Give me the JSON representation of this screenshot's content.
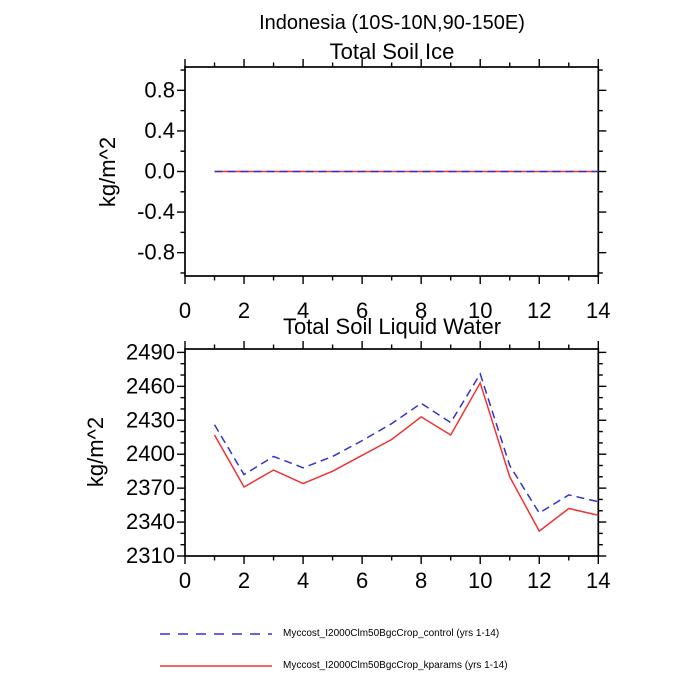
{
  "page": {
    "main_title": "Indonesia (10S-10N,90-150E)",
    "background": "#ffffff",
    "text_color": "#000000"
  },
  "chart_data": [
    {
      "type": "line",
      "title": "Total Soil Ice",
      "ylabel": "kg/m^2",
      "xlim": [
        0,
        14
      ],
      "ylim": [
        -1.03,
        1.03
      ],
      "grid": false,
      "x": [
        1,
        2,
        3,
        4,
        5,
        6,
        7,
        8,
        9,
        10,
        11,
        12,
        13,
        14
      ],
      "xticks": {
        "values": [
          0,
          2,
          4,
          6,
          8,
          10,
          12,
          14
        ],
        "labels": [
          "0",
          "2",
          "4",
          "6",
          "8",
          "10",
          "12",
          "14"
        ],
        "minor": [
          1,
          3,
          5,
          7,
          9,
          11,
          13
        ]
      },
      "yticks": {
        "values": [
          0.8,
          0.4,
          0.0,
          -0.4,
          -0.8
        ],
        "labels": [
          "0.8",
          "0.4",
          "0.0",
          "-0.4",
          "-0.8"
        ],
        "minor": [
          -1.0,
          -0.6,
          -0.2,
          0.2,
          0.6,
          1.0
        ]
      },
      "series": [
        {
          "name": "Myccost_I2000Clm50BgcCrop_control (yrs 1-14)",
          "color": "#3333cc",
          "dashed": true,
          "values": [
            0.0,
            0.0,
            0.0,
            0.0,
            0.0,
            0.0,
            0.0,
            0.0,
            0.0,
            0.0,
            0.0,
            0.0,
            0.0,
            0.0
          ]
        },
        {
          "name": "Myccost_I2000Clm50BgcCrop_kparams (yrs 1-14)",
          "color": "#ee3333",
          "dashed": false,
          "values": [
            0.0,
            0.0,
            0.0,
            0.0,
            0.0,
            0.0,
            0.0,
            0.0,
            0.0,
            0.0,
            0.0,
            0.0,
            0.0,
            0.0
          ]
        }
      ]
    },
    {
      "type": "line",
      "title": "Total Soil Liquid Water",
      "ylabel": "kg/m^2",
      "xlim": [
        0,
        14
      ],
      "ylim": [
        2310,
        2493
      ],
      "grid": false,
      "x": [
        1,
        2,
        3,
        4,
        5,
        6,
        7,
        8,
        9,
        10,
        11,
        12,
        13,
        14
      ],
      "xticks": {
        "values": [
          0,
          2,
          4,
          6,
          8,
          10,
          12,
          14
        ],
        "labels": [
          "0",
          "2",
          "4",
          "6",
          "8",
          "10",
          "12",
          "14"
        ],
        "minor": [
          1,
          3,
          5,
          7,
          9,
          11,
          13
        ]
      },
      "yticks": {
        "values": [
          2490,
          2460,
          2430,
          2400,
          2370,
          2340,
          2310
        ],
        "labels": [
          "2490",
          "2460",
          "2430",
          "2400",
          "2370",
          "2340",
          "2310"
        ],
        "minor": [
          2320,
          2330,
          2350,
          2360,
          2380,
          2390,
          2410,
          2420,
          2440,
          2450,
          2470,
          2480
        ]
      },
      "series": [
        {
          "name": "Myccost_I2000Clm50BgcCrop_control (yrs 1-14)",
          "color": "#3333cc",
          "dashed": true,
          "values": [
            2426,
            2382,
            2398,
            2388,
            2398,
            2412,
            2427,
            2445,
            2428,
            2471,
            2390,
            2348,
            2364,
            2358
          ]
        },
        {
          "name": "Myccost_I2000Clm50BgcCrop_kparams (yrs 1-14)",
          "color": "#ee3333",
          "dashed": false,
          "values": [
            2417,
            2371,
            2386,
            2374,
            2385,
            2399,
            2413,
            2433,
            2417,
            2463,
            2380,
            2332,
            2352,
            2346
          ]
        }
      ]
    }
  ],
  "legend": {
    "entries": [
      {
        "label": "Myccost_I2000Clm50BgcCrop_control (yrs 1-14)"
      },
      {
        "label": "Myccost_I2000Clm50BgcCrop_kparams (yrs 1-14)"
      }
    ]
  }
}
